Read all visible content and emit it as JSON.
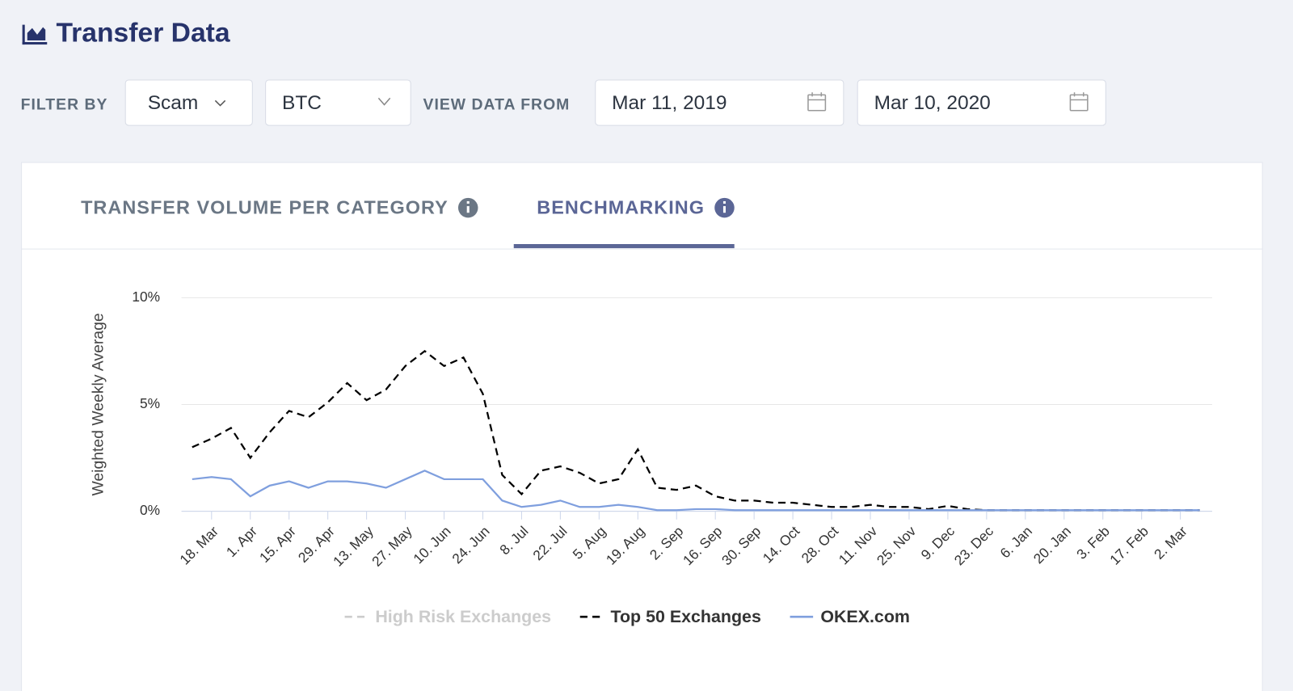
{
  "header": {
    "title": "Transfer Data"
  },
  "filters": {
    "filter_label": "FILTER BY",
    "category": "Scam",
    "asset": "BTC",
    "date_label": "VIEW DATA FROM",
    "start_date": "Mar 11, 2019",
    "end_date": "Mar 10, 2020"
  },
  "tabs": [
    {
      "label": "TRANSFER VOLUME PER CATEGORY",
      "active": false
    },
    {
      "label": "BENCHMARKING",
      "active": true
    }
  ],
  "chart_data": {
    "type": "line",
    "y_label": "Weighted Weekly Average",
    "categories": [
      null,
      "18. Mar",
      null,
      "1. Apr",
      null,
      "15. Apr",
      null,
      "29. Apr",
      null,
      "13. May",
      null,
      "27. May",
      null,
      "10. Jun",
      null,
      "24. Jun",
      null,
      "8. Jul",
      null,
      "22. Jul",
      null,
      "5. Aug",
      null,
      "19. Aug",
      null,
      "2. Sep",
      null,
      "16. Sep",
      null,
      "30. Sep",
      null,
      "14. Oct",
      null,
      "28. Oct",
      null,
      "11. Nov",
      null,
      "25. Nov",
      null,
      "9. Dec",
      null,
      "23. Dec",
      null,
      "6. Jan",
      null,
      "20. Jan",
      null,
      "3. Feb",
      null,
      "17. Feb",
      null,
      "2. Mar",
      null
    ],
    "ylim": [
      0,
      10
    ],
    "yticks": [
      {
        "value": 0,
        "label": "0%"
      },
      {
        "value": 5,
        "label": "5%"
      },
      {
        "value": 10,
        "label": "10%"
      }
    ],
    "grid": true,
    "series": [
      {
        "name": "High Risk Exchanges",
        "color": "#cccccc",
        "dash": true,
        "visible": false,
        "values": [
          null,
          null,
          null,
          null,
          null,
          null,
          null,
          null,
          null,
          null,
          null,
          null,
          null,
          null,
          null,
          null,
          null,
          null,
          null,
          null,
          null,
          null,
          null,
          null,
          null,
          null,
          null,
          null,
          null,
          null,
          null,
          null,
          null,
          null,
          null,
          null,
          null,
          null,
          null,
          null,
          null,
          null,
          null,
          null,
          null,
          null,
          null,
          null,
          null,
          null,
          null,
          null,
          null
        ]
      },
      {
        "name": "Top 50 Exchanges",
        "color": "#000000",
        "dash": true,
        "visible": true,
        "values": [
          3.0,
          3.4,
          3.9,
          2.5,
          3.7,
          4.7,
          4.4,
          5.1,
          6.0,
          5.2,
          5.7,
          6.8,
          7.5,
          6.8,
          7.2,
          5.5,
          1.7,
          0.8,
          1.9,
          2.1,
          1.8,
          1.3,
          1.5,
          2.9,
          1.1,
          1.0,
          1.2,
          0.7,
          0.5,
          0.5,
          0.4,
          0.4,
          0.3,
          0.2,
          0.2,
          0.3,
          0.2,
          0.2,
          0.1,
          0.25,
          0.1,
          0.05,
          0.05,
          0.05,
          0.05,
          0.05,
          0.05,
          0.05,
          0.05,
          0.05,
          0.05,
          0.05,
          0.05
        ]
      },
      {
        "name": "OKEX.com",
        "color": "#7f9fde",
        "dash": false,
        "visible": true,
        "values": [
          1.5,
          1.6,
          1.5,
          0.7,
          1.2,
          1.4,
          1.1,
          1.4,
          1.4,
          1.3,
          1.1,
          1.5,
          1.9,
          1.5,
          1.5,
          1.5,
          0.5,
          0.2,
          0.3,
          0.5,
          0.2,
          0.2,
          0.3,
          0.2,
          0.05,
          0.05,
          0.1,
          0.1,
          0.05,
          0.05,
          0.05,
          0.05,
          0.05,
          0.05,
          0.05,
          0.05,
          0.05,
          0.05,
          0.05,
          0.05,
          0.05,
          0.05,
          0.05,
          0.05,
          0.05,
          0.05,
          0.05,
          0.05,
          0.05,
          0.05,
          0.05,
          0.05,
          0.05
        ]
      }
    ]
  }
}
